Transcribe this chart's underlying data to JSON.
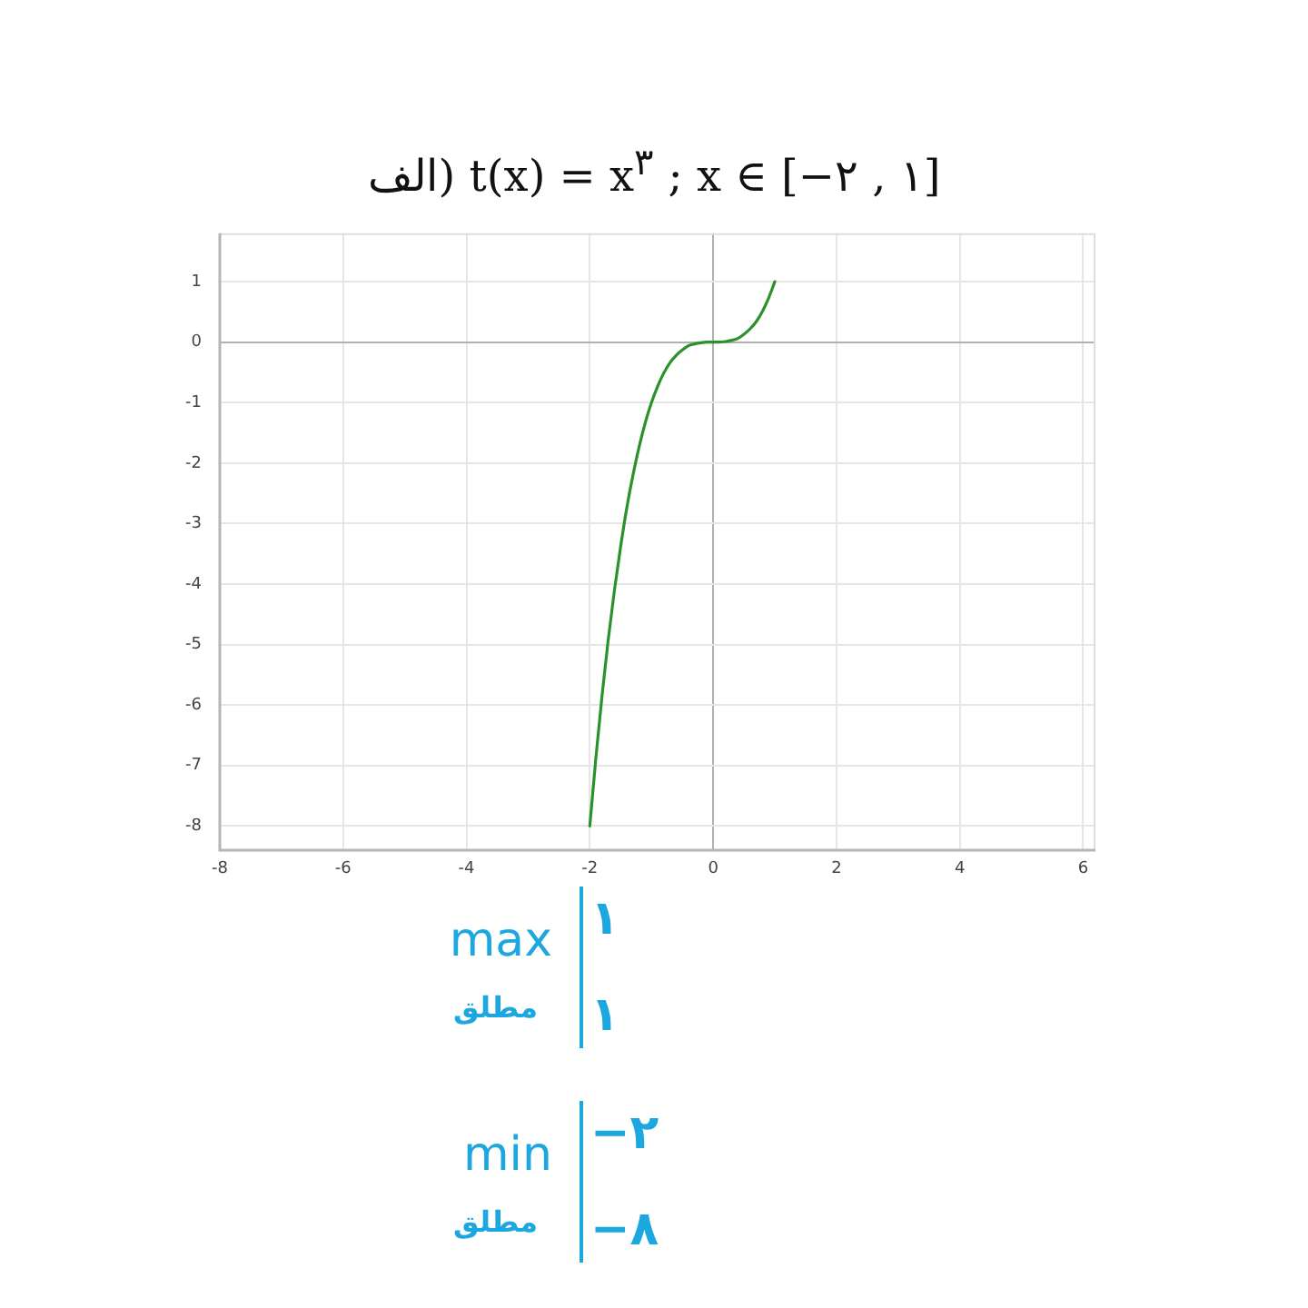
{
  "chart_data": {
    "type": "line",
    "title": "الف) t(x) = x$^{۳}$ ; x ∈ [−۲ , ۱]",
    "x": [
      -2,
      -1.9,
      -1.8,
      -1.7,
      -1.6,
      -1.5,
      -1.4,
      -1.3,
      -1.2,
      -1.1,
      -1,
      -0.9,
      -0.8,
      -0.7,
      -0.6,
      -0.5,
      -0.4,
      -0.3,
      -0.2,
      -0.1,
      0,
      0.1,
      0.2,
      0.3,
      0.4,
      0.5,
      0.6,
      0.7,
      0.8,
      0.9,
      1
    ],
    "series": [
      {
        "color": "#2b912b",
        "values": [
          -8,
          -6.86,
          -5.83,
          -4.91,
          -4.1,
          -3.38,
          -2.74,
          -2.2,
          -1.73,
          -1.33,
          -1,
          -0.73,
          -0.51,
          -0.34,
          -0.22,
          -0.13,
          -0.06,
          -0.03,
          -0.01,
          0,
          0,
          0,
          0.01,
          0.03,
          0.06,
          0.13,
          0.22,
          0.34,
          0.51,
          0.73,
          1
        ]
      }
    ],
    "xlim": [
      -8,
      6.2
    ],
    "ylim": [
      -8.4,
      1.8
    ],
    "xticks": [
      -8,
      -6,
      -4,
      -2,
      0,
      2,
      4,
      6
    ],
    "yticks": [
      -8,
      -7,
      -6,
      -5,
      -4,
      -3,
      -2,
      -1,
      0,
      1
    ],
    "grid": true,
    "legend": false,
    "marker": "none",
    "line_style": "solid",
    "annotations": [
      "max",
      "۱",
      "مطلق",
      "۱",
      "min",
      "−۲",
      "مطلق",
      "−۸"
    ]
  }
}
